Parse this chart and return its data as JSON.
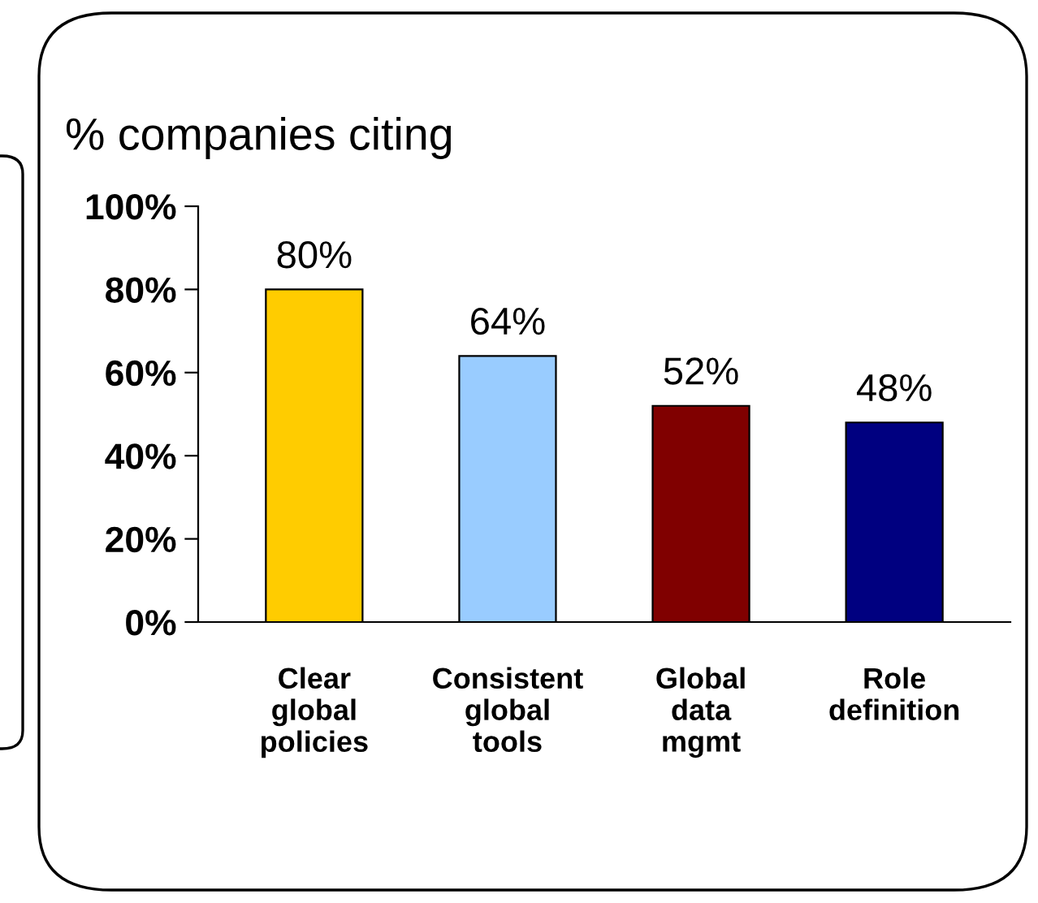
{
  "chart_data": {
    "type": "bar",
    "title": "% companies citing",
    "categories": [
      "Clear\nglobal\npolicies",
      "Consistent\nglobal\ntools",
      "Global\ndata\nmgmt",
      "Role\ndefinition"
    ],
    "values": [
      80,
      64,
      52,
      48
    ],
    "colors": [
      "#ffcc00",
      "#99ccff",
      "#800000",
      "#000080"
    ],
    "value_labels": [
      "80%",
      "64%",
      "52%",
      "48%"
    ],
    "ylim": [
      0,
      100
    ],
    "yticks": [
      {
        "value": 0,
        "label": "0%"
      },
      {
        "value": 20,
        "label": "20%"
      },
      {
        "value": 40,
        "label": "40%"
      },
      {
        "value": 60,
        "label": "60%"
      },
      {
        "value": 80,
        "label": "80%"
      },
      {
        "value": 100,
        "label": "100%"
      }
    ],
    "grid": false,
    "legend": false
  }
}
